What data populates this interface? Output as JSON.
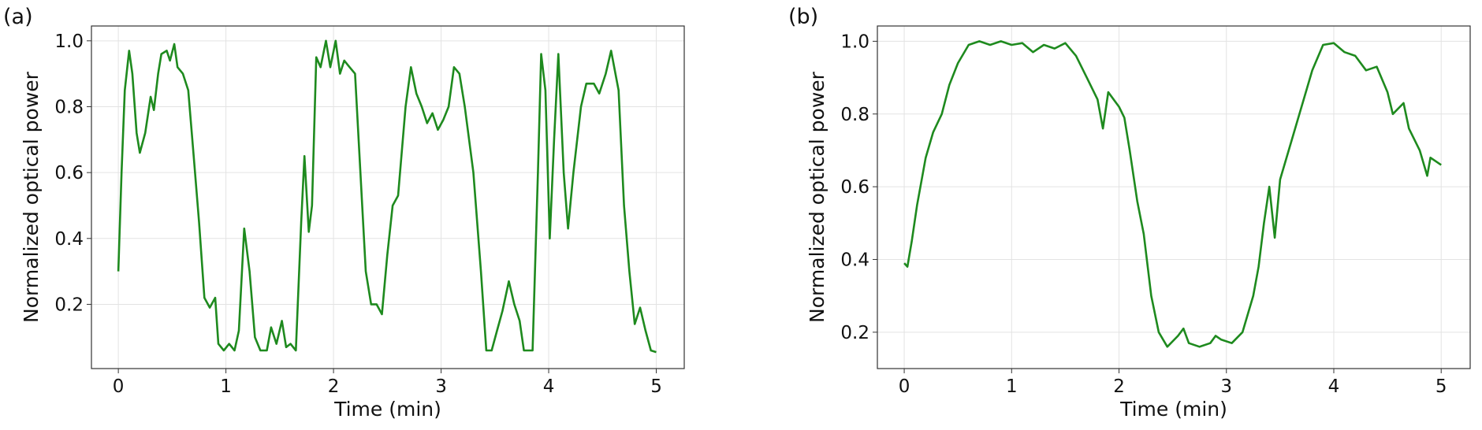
{
  "chart_data": [
    {
      "type": "line",
      "panel_label": "(a)",
      "xlabel": "Time (min)",
      "ylabel": "Normalized optical power",
      "xlim": [
        -0.25,
        5.26
      ],
      "ylim": [
        0.005,
        1.045
      ],
      "grid": true,
      "xticks": [
        0,
        1,
        2,
        3,
        4,
        5
      ],
      "yticks": [
        0.2,
        0.4,
        0.6,
        0.8,
        {
          "value": 1,
          "label": "1.0"
        }
      ],
      "x": [
        0,
        0.03,
        0.06,
        0.1,
        0.13,
        0.17,
        0.2,
        0.25,
        0.3,
        0.33,
        0.37,
        0.4,
        0.45,
        0.48,
        0.52,
        0.55,
        0.6,
        0.65,
        0.7,
        0.75,
        0.8,
        0.85,
        0.9,
        0.93,
        0.98,
        1.03,
        1.08,
        1.12,
        1.17,
        1.22,
        1.27,
        1.32,
        1.38,
        1.42,
        1.47,
        1.52,
        1.56,
        1.6,
        1.65,
        1.7,
        1.73,
        1.77,
        1.8,
        1.84,
        1.88,
        1.93,
        1.97,
        2.02,
        2.06,
        2.1,
        2.15,
        2.2,
        2.25,
        2.3,
        2.35,
        2.4,
        2.45,
        2.5,
        2.55,
        2.6,
        2.67,
        2.72,
        2.77,
        2.82,
        2.87,
        2.92,
        2.97,
        3.02,
        3.07,
        3.12,
        3.17,
        3.22,
        3.3,
        3.37,
        3.42,
        3.47,
        3.52,
        3.57,
        3.63,
        3.68,
        3.73,
        3.77,
        3.85,
        3.9,
        3.93,
        3.97,
        4.01,
        4.05,
        4.09,
        4.14,
        4.18,
        4.23,
        4.3,
        4.35,
        4.42,
        4.47,
        4.53,
        4.58,
        4.65,
        4.7,
        4.75,
        4.8,
        4.85,
        4.9,
        4.95,
        5.0
      ],
      "series": [
        {
          "color": "#1e8a1e",
          "values": [
            0.3,
            0.6,
            0.85,
            0.97,
            0.9,
            0.72,
            0.66,
            0.72,
            0.83,
            0.79,
            0.9,
            0.96,
            0.97,
            0.94,
            0.99,
            0.92,
            0.9,
            0.85,
            0.65,
            0.45,
            0.22,
            0.19,
            0.22,
            0.08,
            0.06,
            0.08,
            0.06,
            0.12,
            0.43,
            0.3,
            0.1,
            0.06,
            0.06,
            0.13,
            0.08,
            0.15,
            0.07,
            0.08,
            0.06,
            0.45,
            0.65,
            0.42,
            0.5,
            0.95,
            0.92,
            1.0,
            0.92,
            1.0,
            0.9,
            0.94,
            0.92,
            0.9,
            0.6,
            0.3,
            0.2,
            0.2,
            0.17,
            0.35,
            0.5,
            0.53,
            0.8,
            0.92,
            0.84,
            0.8,
            0.75,
            0.78,
            0.73,
            0.76,
            0.8,
            0.92,
            0.9,
            0.8,
            0.6,
            0.3,
            0.06,
            0.06,
            0.12,
            0.18,
            0.27,
            0.2,
            0.15,
            0.06,
            0.06,
            0.6,
            0.96,
            0.85,
            0.4,
            0.7,
            0.96,
            0.6,
            0.43,
            0.6,
            0.8,
            0.87,
            0.87,
            0.84,
            0.9,
            0.97,
            0.85,
            0.5,
            0.3,
            0.14,
            0.19,
            0.12,
            0.06,
            0.055
          ]
        }
      ]
    },
    {
      "type": "line",
      "panel_label": "(b)",
      "xlabel": "Time (min)",
      "ylabel": "Normalized optical power",
      "xlim": [
        -0.25,
        5.27
      ],
      "ylim": [
        0.1,
        1.042
      ],
      "grid": true,
      "xticks": [
        0,
        1,
        2,
        3,
        4,
        5
      ],
      "yticks": [
        0.2,
        0.4,
        0.6,
        0.8,
        {
          "value": 1,
          "label": "1.0"
        }
      ],
      "x": [
        0,
        0.03,
        0.07,
        0.12,
        0.2,
        0.27,
        0.35,
        0.42,
        0.5,
        0.6,
        0.7,
        0.8,
        0.9,
        1.0,
        1.1,
        1.2,
        1.3,
        1.4,
        1.5,
        1.6,
        1.7,
        1.8,
        1.85,
        1.9,
        1.95,
        2.0,
        2.05,
        2.1,
        2.17,
        2.23,
        2.3,
        2.37,
        2.45,
        2.55,
        2.6,
        2.65,
        2.75,
        2.85,
        2.9,
        2.95,
        3.05,
        3.15,
        3.25,
        3.3,
        3.35,
        3.4,
        3.45,
        3.5,
        3.6,
        3.7,
        3.8,
        3.9,
        4.0,
        4.1,
        4.2,
        4.3,
        4.4,
        4.5,
        4.55,
        4.65,
        4.7,
        4.8,
        4.87,
        4.9,
        5.0
      ],
      "series": [
        {
          "color": "#1e8a1e",
          "values": [
            0.39,
            0.38,
            0.45,
            0.55,
            0.68,
            0.75,
            0.8,
            0.88,
            0.94,
            0.99,
            1.0,
            0.99,
            1.0,
            0.99,
            0.995,
            0.97,
            0.99,
            0.98,
            0.995,
            0.96,
            0.9,
            0.84,
            0.76,
            0.86,
            0.84,
            0.82,
            0.79,
            0.7,
            0.56,
            0.47,
            0.3,
            0.2,
            0.16,
            0.19,
            0.21,
            0.17,
            0.16,
            0.17,
            0.19,
            0.18,
            0.17,
            0.2,
            0.3,
            0.38,
            0.5,
            0.6,
            0.46,
            0.62,
            0.72,
            0.82,
            0.92,
            0.99,
            0.995,
            0.97,
            0.96,
            0.92,
            0.93,
            0.86,
            0.8,
            0.83,
            0.76,
            0.7,
            0.63,
            0.68,
            0.66
          ]
        }
      ]
    }
  ]
}
